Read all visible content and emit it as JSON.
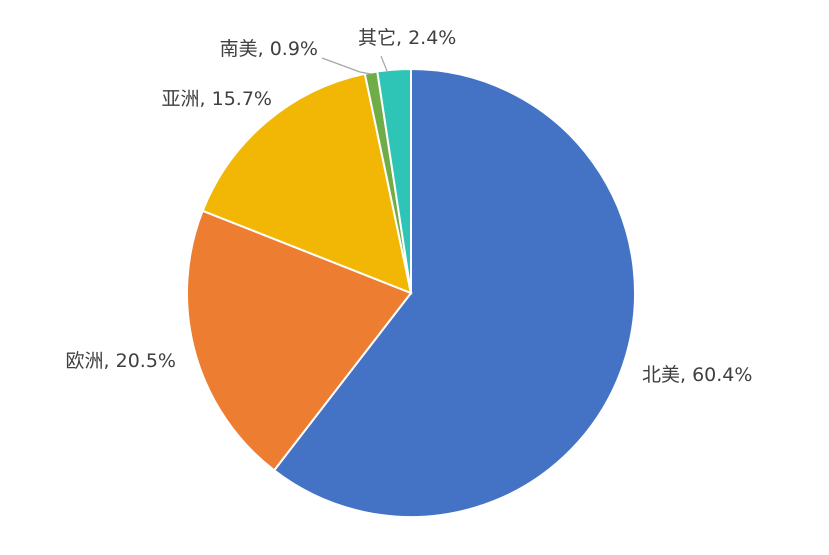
{
  "chart_data": {
    "type": "pie",
    "start_angle_deg": 0,
    "direction": "clockwise",
    "slices": [
      {
        "label": "北美",
        "value": 60.4,
        "display": "北美, 60.4%",
        "color": "#4472C4"
      },
      {
        "label": "欧洲",
        "value": 20.5,
        "display": "欧洲, 20.5%",
        "color": "#ED7D31"
      },
      {
        "label": "亚洲",
        "value": 15.7,
        "display": "亚洲, 15.7%",
        "color": "#F2B705"
      },
      {
        "label": "南美",
        "value": 0.9,
        "display": "南美, 0.9%",
        "color": "#70AD47"
      },
      {
        "label": "其它",
        "value": 2.4,
        "display": "其它, 2.4%",
        "color": "#2EC4B6"
      }
    ],
    "legend": "none"
  }
}
